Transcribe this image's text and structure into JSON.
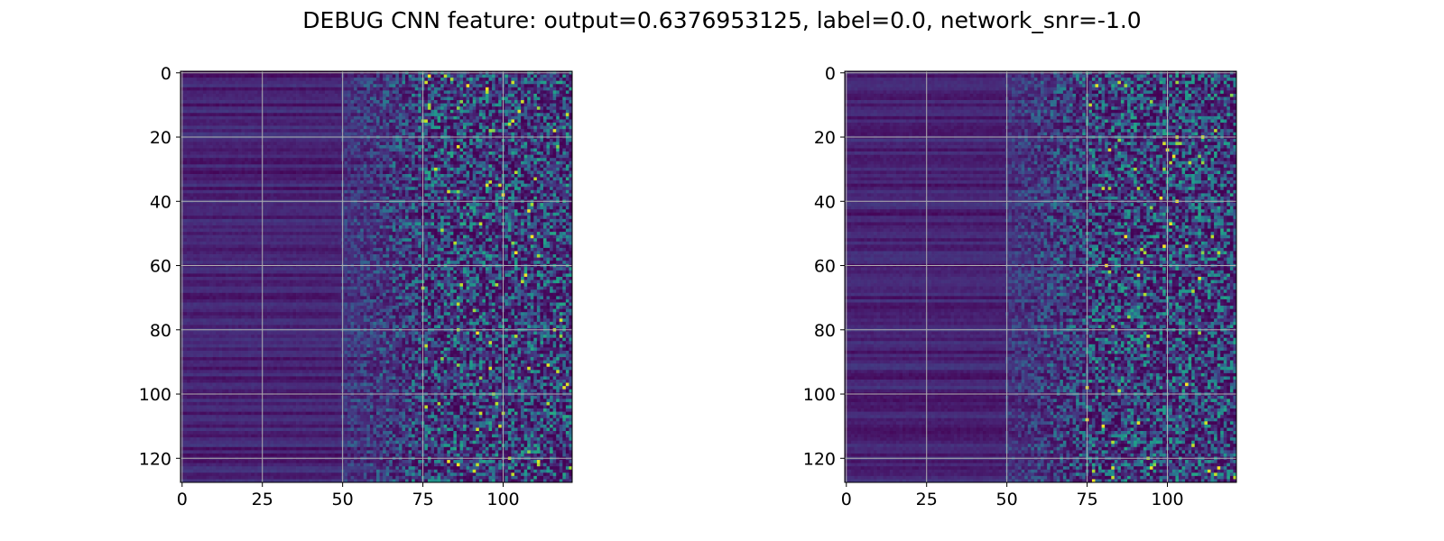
{
  "figure": {
    "title": "DEBUG CNN feature: output=0.6376953125, label=0.0, network_snr=-1.0"
  },
  "chart_data": [
    {
      "type": "heatmap",
      "panel": "left",
      "colormap": "viridis",
      "rows": 128,
      "cols": 122,
      "xlim": [
        -0.5,
        121.5
      ],
      "ylim": [
        127.5,
        -0.5
      ],
      "y_inverted": true,
      "xticks": [
        0,
        25,
        50,
        75,
        100
      ],
      "yticks": [
        0,
        20,
        40,
        60,
        80,
        100,
        120
      ],
      "grid": true,
      "structure": {
        "low_value_columns": [
          0,
          50
        ],
        "transition_columns": [
          50,
          75
        ],
        "high_variance_columns": [
          75,
          121
        ]
      }
    },
    {
      "type": "heatmap",
      "panel": "right",
      "colormap": "viridis",
      "rows": 128,
      "cols": 122,
      "xlim": [
        -0.5,
        121.5
      ],
      "ylim": [
        127.5,
        -0.5
      ],
      "y_inverted": true,
      "xticks": [
        0,
        25,
        50,
        75,
        100
      ],
      "yticks": [
        0,
        20,
        40,
        60,
        80,
        100,
        120
      ],
      "grid": true,
      "structure": {
        "low_value_columns": [
          0,
          50
        ],
        "transition_columns": [
          50,
          75
        ],
        "high_variance_columns": [
          75,
          121
        ]
      }
    }
  ]
}
